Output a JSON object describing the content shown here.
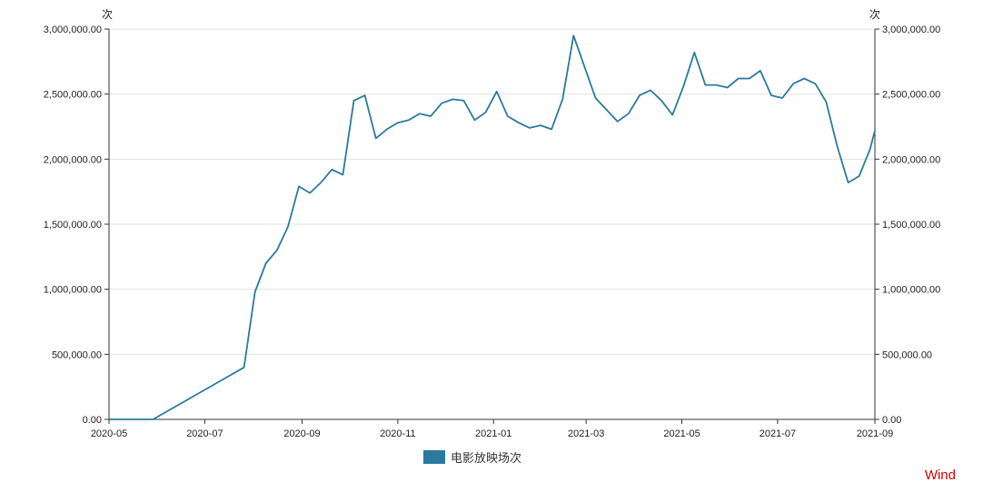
{
  "chart_data": {
    "type": "line",
    "title": "",
    "xlabel": "",
    "y_unit_left": "次",
    "y_unit_right": "次",
    "x_ticks": [
      "2020-05",
      "2020-07",
      "2020-09",
      "2020-11",
      "2021-01",
      "2021-03",
      "2021-05",
      "2021-07",
      "2021-09"
    ],
    "x_range": [
      "2020-05-01",
      "2021-09-01"
    ],
    "ylim": [
      0,
      3000000
    ],
    "y_ticks": [
      "0.00",
      "500,000.00",
      "1,000,000.00",
      "1,500,000.00",
      "2,000,000.00",
      "2,500,000.00",
      "3,000,000.00"
    ],
    "y_tick_values": [
      0,
      500000,
      1000000,
      1500000,
      2000000,
      2500000,
      3000000
    ],
    "grid": true,
    "legend_position": "bottom-center",
    "series": [
      {
        "name": "电影放映场次",
        "color": "#2a7aa0",
        "points": [
          [
            "2020-05-01",
            0
          ],
          [
            "2020-05-29",
            0
          ],
          [
            "2020-07-26",
            400000
          ],
          [
            "2020-08-02",
            980000
          ],
          [
            "2020-08-09",
            1200000
          ],
          [
            "2020-08-16",
            1300000
          ],
          [
            "2020-08-23",
            1480000
          ],
          [
            "2020-08-30",
            1790000
          ],
          [
            "2020-09-06",
            1740000
          ],
          [
            "2020-09-13",
            1820000
          ],
          [
            "2020-09-20",
            1920000
          ],
          [
            "2020-09-27",
            1880000
          ],
          [
            "2020-10-04",
            2450000
          ],
          [
            "2020-10-11",
            2490000
          ],
          [
            "2020-10-18",
            2160000
          ],
          [
            "2020-10-25",
            2230000
          ],
          [
            "2020-11-01",
            2280000
          ],
          [
            "2020-11-08",
            2300000
          ],
          [
            "2020-11-15",
            2350000
          ],
          [
            "2020-11-22",
            2330000
          ],
          [
            "2020-11-29",
            2430000
          ],
          [
            "2020-12-06",
            2460000
          ],
          [
            "2020-12-13",
            2450000
          ],
          [
            "2020-12-20",
            2300000
          ],
          [
            "2020-12-27",
            2360000
          ],
          [
            "2021-01-03",
            2520000
          ],
          [
            "2021-01-10",
            2330000
          ],
          [
            "2021-01-17",
            2280000
          ],
          [
            "2021-01-24",
            2240000
          ],
          [
            "2021-01-31",
            2260000
          ],
          [
            "2021-02-07",
            2230000
          ],
          [
            "2021-02-14",
            2460000
          ],
          [
            "2021-02-21",
            2950000
          ],
          [
            "2021-02-28",
            2710000
          ],
          [
            "2021-03-07",
            2470000
          ],
          [
            "2021-03-14",
            2380000
          ],
          [
            "2021-03-21",
            2290000
          ],
          [
            "2021-03-28",
            2350000
          ],
          [
            "2021-04-04",
            2490000
          ],
          [
            "2021-04-11",
            2530000
          ],
          [
            "2021-04-18",
            2450000
          ],
          [
            "2021-04-25",
            2340000
          ],
          [
            "2021-05-02",
            2560000
          ],
          [
            "2021-05-09",
            2820000
          ],
          [
            "2021-05-16",
            2570000
          ],
          [
            "2021-05-23",
            2570000
          ],
          [
            "2021-05-30",
            2550000
          ],
          [
            "2021-06-06",
            2620000
          ],
          [
            "2021-06-13",
            2620000
          ],
          [
            "2021-06-20",
            2680000
          ],
          [
            "2021-06-27",
            2490000
          ],
          [
            "2021-07-04",
            2470000
          ],
          [
            "2021-07-11",
            2580000
          ],
          [
            "2021-07-18",
            2620000
          ],
          [
            "2021-07-25",
            2580000
          ],
          [
            "2021-08-01",
            2440000
          ],
          [
            "2021-08-08",
            2100000
          ],
          [
            "2021-08-15",
            1820000
          ],
          [
            "2021-08-22",
            1870000
          ],
          [
            "2021-08-29",
            2080000
          ],
          [
            "2021-09-01",
            2220000
          ]
        ]
      }
    ]
  },
  "watermark": "Wind"
}
